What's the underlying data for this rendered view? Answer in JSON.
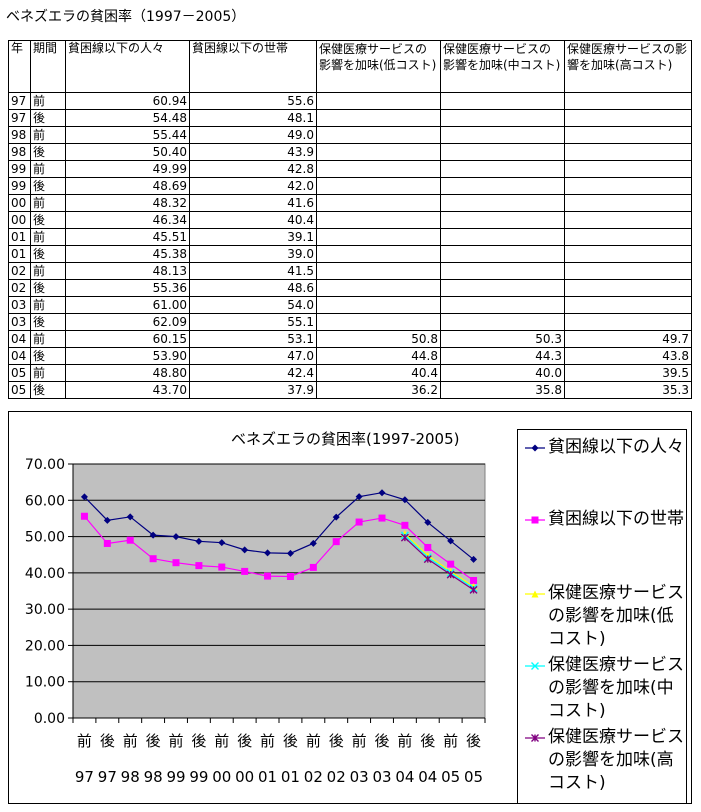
{
  "sheet_title": "ベネズエラの貧困率（1997－2005）",
  "table": {
    "headers": [
      "年",
      "期間",
      "貧困線以下の人々",
      "貧困線以下の世帯",
      "保健医療サービスの影響を加味(低コスト)",
      "保健医療サービスの影響を加味(中コスト)",
      "保健医療サービスの影響を加味(高コスト)"
    ],
    "rows": [
      [
        "97",
        "前",
        "60.94",
        "55.6",
        "",
        "",
        ""
      ],
      [
        "97",
        "後",
        "54.48",
        "48.1",
        "",
        "",
        ""
      ],
      [
        "98",
        "前",
        "55.44",
        "49.0",
        "",
        "",
        ""
      ],
      [
        "98",
        "後",
        "50.40",
        "43.9",
        "",
        "",
        ""
      ],
      [
        "99",
        "前",
        "49.99",
        "42.8",
        "",
        "",
        ""
      ],
      [
        "99",
        "後",
        "48.69",
        "42.0",
        "",
        "",
        ""
      ],
      [
        "00",
        "前",
        "48.32",
        "41.6",
        "",
        "",
        ""
      ],
      [
        "00",
        "後",
        "46.34",
        "40.4",
        "",
        "",
        ""
      ],
      [
        "01",
        "前",
        "45.51",
        "39.1",
        "",
        "",
        ""
      ],
      [
        "01",
        "後",
        "45.38",
        "39.0",
        "",
        "",
        ""
      ],
      [
        "02",
        "前",
        "48.13",
        "41.5",
        "",
        "",
        ""
      ],
      [
        "02",
        "後",
        "55.36",
        "48.6",
        "",
        "",
        ""
      ],
      [
        "03",
        "前",
        "61.00",
        "54.0",
        "",
        "",
        ""
      ],
      [
        "03",
        "後",
        "62.09",
        "55.1",
        "",
        "",
        ""
      ],
      [
        "04",
        "前",
        "60.15",
        "53.1",
        "50.8",
        "50.3",
        "49.7"
      ],
      [
        "04",
        "後",
        "53.90",
        "47.0",
        "44.8",
        "44.3",
        "43.8"
      ],
      [
        "05",
        "前",
        "48.80",
        "42.4",
        "40.4",
        "40.0",
        "39.5"
      ],
      [
        "05",
        "後",
        "43.70",
        "37.9",
        "36.2",
        "35.8",
        "35.3"
      ]
    ]
  },
  "colors": {
    "plot_bg": "#c0c0c0",
    "gridline": "#000000",
    "series": [
      "#000080",
      "#ff00ff",
      "#ffff00",
      "#00ffff",
      "#800080"
    ]
  },
  "chart_data": {
    "type": "line",
    "title": "ベネズエラの貧困率(1997-2005)",
    "categories": [
      "前 97",
      "後 97",
      "前 98",
      "後 98",
      "前 99",
      "後 99",
      "前 00",
      "後 00",
      "前 01",
      "後 01",
      "前 02",
      "後 02",
      "前 03",
      "後 03",
      "前 04",
      "後 04",
      "前 05",
      "後 05"
    ],
    "category_periods": [
      "前",
      "後",
      "前",
      "後",
      "前",
      "後",
      "前",
      "後",
      "前",
      "後",
      "前",
      "後",
      "前",
      "後",
      "前",
      "後",
      "前",
      "後"
    ],
    "category_years": [
      "97",
      "97",
      "98",
      "98",
      "99",
      "99",
      "00",
      "00",
      "01",
      "01",
      "02",
      "02",
      "03",
      "03",
      "04",
      "04",
      "05",
      "05"
    ],
    "yticks": [
      "0.00",
      "10.00",
      "20.00",
      "30.00",
      "40.00",
      "50.00",
      "60.00",
      "70.00"
    ],
    "ylim": [
      0,
      70
    ],
    "grid": true,
    "legend_position": "right",
    "series": [
      {
        "name": "貧困線以下の人々",
        "marker": "diamond",
        "values": [
          60.94,
          54.48,
          55.44,
          50.4,
          49.99,
          48.69,
          48.32,
          46.34,
          45.51,
          45.38,
          48.13,
          55.36,
          61.0,
          62.09,
          60.15,
          53.9,
          48.8,
          43.7
        ]
      },
      {
        "name": "貧困線以下の世帯",
        "marker": "square",
        "values": [
          55.6,
          48.1,
          49.0,
          43.9,
          42.8,
          42.0,
          41.6,
          40.4,
          39.1,
          39.0,
          41.5,
          48.6,
          54.0,
          55.1,
          53.1,
          47.0,
          42.4,
          37.9
        ]
      },
      {
        "name": "保健医療サービスの影響を加味(低コスト)",
        "marker": "triangle",
        "values": [
          null,
          null,
          null,
          null,
          null,
          null,
          null,
          null,
          null,
          null,
          null,
          null,
          null,
          null,
          50.8,
          44.8,
          40.4,
          36.2
        ]
      },
      {
        "name": "保健医療サービスの影響を加味(中コスト)",
        "marker": "x",
        "values": [
          null,
          null,
          null,
          null,
          null,
          null,
          null,
          null,
          null,
          null,
          null,
          null,
          null,
          null,
          50.3,
          44.3,
          40.0,
          35.8
        ]
      },
      {
        "name": "保健医療サービスの影響を加味(高コスト)",
        "marker": "star",
        "values": [
          null,
          null,
          null,
          null,
          null,
          null,
          null,
          null,
          null,
          null,
          null,
          null,
          null,
          null,
          49.7,
          43.8,
          39.5,
          35.3
        ]
      }
    ]
  }
}
